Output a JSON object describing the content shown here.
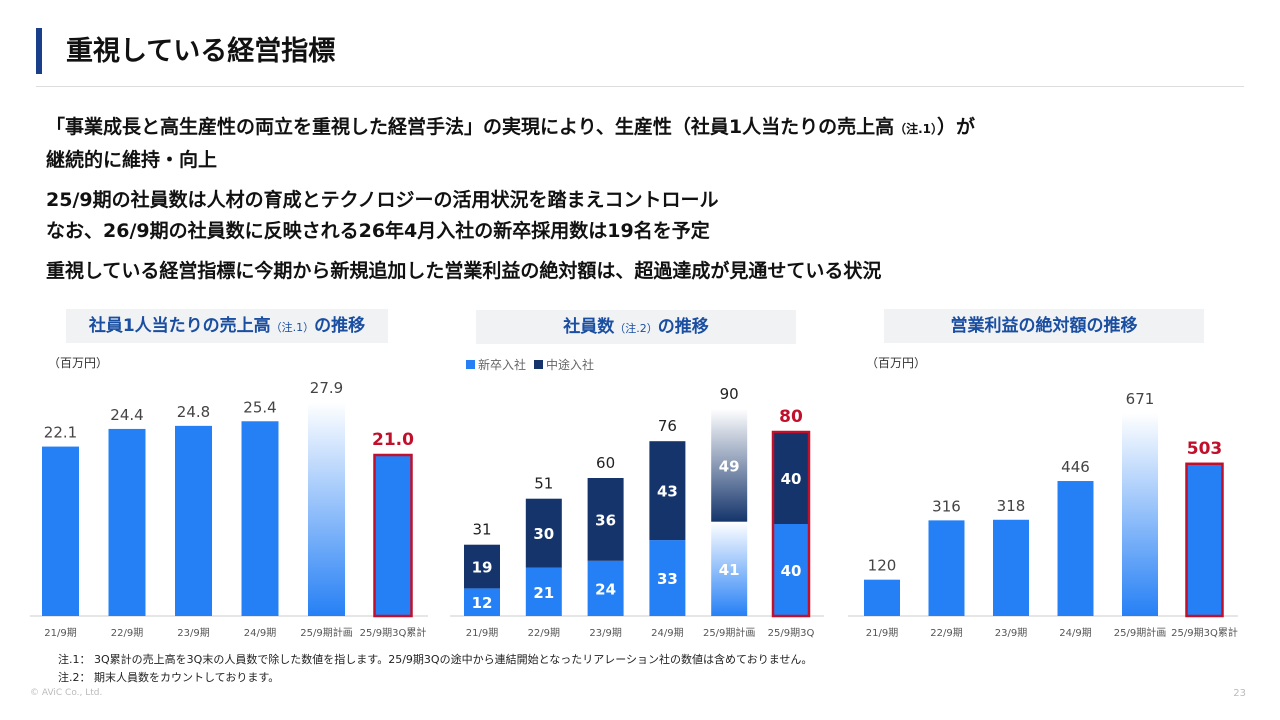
{
  "header": {
    "title": "重視している経営指標"
  },
  "bullets": {
    "b1_main": "「事業成長と高生産性の両立を重視した経営手法」の実現により、生産性（社員1人当たりの売上高",
    "b1_note": "（注.1）",
    "b1_end": "）が",
    "b1_line2": "継続的に維持・向上",
    "b2_line1": "25/9期の社員数は人材の育成とテクノロジーの活用状況を踏まえコントロール",
    "b2_line2": "なお、26/9期の社員数に反映される26年4月入社の新卒採用数は19名を予定",
    "b3": "重視している経営指標に今期から新規追加した営業利益の絶対額は、超過達成が見通せている状況"
  },
  "charts": {
    "sales": {
      "title_main": "社員1人当たりの売上高",
      "title_note": "（注.1）",
      "title_end": "の推移",
      "unit": "（百万円）"
    },
    "staff": {
      "title_main": "社員数",
      "title_note": "（注.2）",
      "title_end": "の推移",
      "legend_new": "新卒入社",
      "legend_mid": "中途入社"
    },
    "profit": {
      "title": "営業利益の絶対額の推移",
      "unit": "（百万円）"
    }
  },
  "colors": {
    "bar": "#2680f5",
    "dark": "#14346b",
    "highlight": "#c0102b",
    "label": "#444"
  },
  "chart_data": [
    {
      "type": "bar",
      "title": "社員1人当たりの売上高（注.1）の推移",
      "ylabel": "（百万円）",
      "categories": [
        "21/9期",
        "22/9期",
        "23/9期",
        "24/9期",
        "25/9期計画",
        "25/9期3Q累計"
      ],
      "values": [
        22.1,
        24.4,
        24.8,
        25.4,
        27.9,
        21.0
      ],
      "labels": [
        "22.1",
        "24.4",
        "24.8",
        "25.4",
        "27.9",
        "21.0"
      ],
      "ylim": [
        0,
        30
      ],
      "plan_index": 4,
      "highlight_index": 5
    },
    {
      "type": "bar",
      "stacked": true,
      "title": "社員数（注.2）の推移",
      "categories": [
        "21/9期",
        "22/9期",
        "23/9期",
        "24/9期",
        "25/9期計画",
        "25/9期3Q"
      ],
      "series": [
        {
          "name": "新卒入社",
          "values": [
            12,
            21,
            24,
            33,
            41,
            40
          ]
        },
        {
          "name": "中途入社",
          "values": [
            19,
            30,
            36,
            43,
            49,
            40
          ]
        }
      ],
      "totals": [
        31,
        51,
        60,
        76,
        90,
        80
      ],
      "ylim": [
        0,
        100
      ],
      "plan_index": 4,
      "highlight_index": 5
    },
    {
      "type": "bar",
      "title": "営業利益の絶対額の推移",
      "ylabel": "（百万円）",
      "categories": [
        "21/9期",
        "22/9期",
        "23/9期",
        "24/9期",
        "25/9期計画",
        "25/9期3Q累計"
      ],
      "values": [
        120,
        316,
        318,
        446,
        671,
        503
      ],
      "ylim": [
        0,
        760
      ],
      "plan_index": 4,
      "highlight_index": 5
    }
  ],
  "footnotes": {
    "n1_label": "注.1：",
    "n1": "3Q累計の売上高を3Q末の人員数で除した数値を指します。25/9期3Qの途中から連結開始となったリアレーション社の数値は含めておりません。",
    "n2_label": "注.2：",
    "n2": "期末人員数をカウントしております。"
  },
  "footer": {
    "copyright": "© AViC Co., Ltd.",
    "page": "23"
  }
}
